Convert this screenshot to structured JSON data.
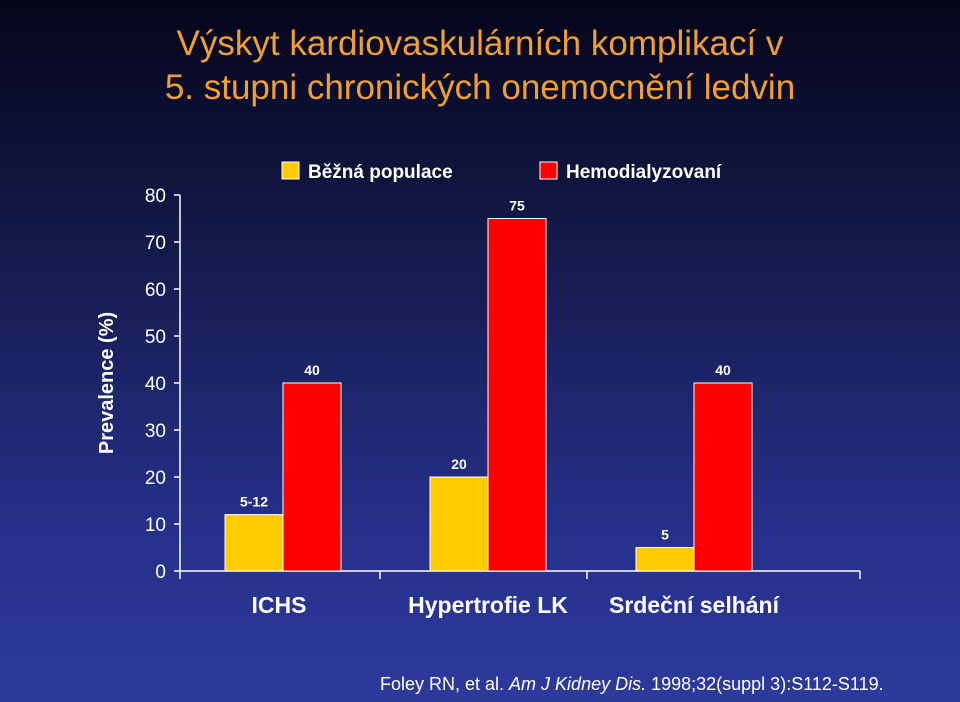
{
  "title": {
    "line1": "Výskyt kardiovaskulárních komplikací v",
    "line2": "5. stupni chronických onemocnění ledvin"
  },
  "colors": {
    "title": "#f0a030",
    "series1": "#ffcc00",
    "series2": "#ff0000",
    "text": "#ffffff"
  },
  "chart_data": {
    "type": "bar",
    "categories": [
      "ICHS",
      "Hypertrofie LK",
      "Srdeční selhání"
    ],
    "series": [
      {
        "name": "Běžná populace",
        "values": [
          12,
          20,
          5
        ],
        "labels": [
          "5-12",
          "20",
          "5"
        ],
        "color": "#ffcc00"
      },
      {
        "name": "Hemodialyzovaní",
        "values": [
          40,
          75,
          40
        ],
        "labels": [
          "40",
          "75",
          "40"
        ],
        "color": "#ff0000"
      }
    ],
    "ylabel": "Prevalence (%)",
    "ylim": [
      0,
      80
    ],
    "yticks": [
      0,
      10,
      20,
      30,
      40,
      50,
      60,
      70,
      80
    ],
    "legend_position": "top"
  },
  "citation": {
    "prefix": "Foley RN, et al. ",
    "journal": "Am J Kidney Dis.",
    "suffix": " 1998;32(suppl 3):S112-S119."
  }
}
